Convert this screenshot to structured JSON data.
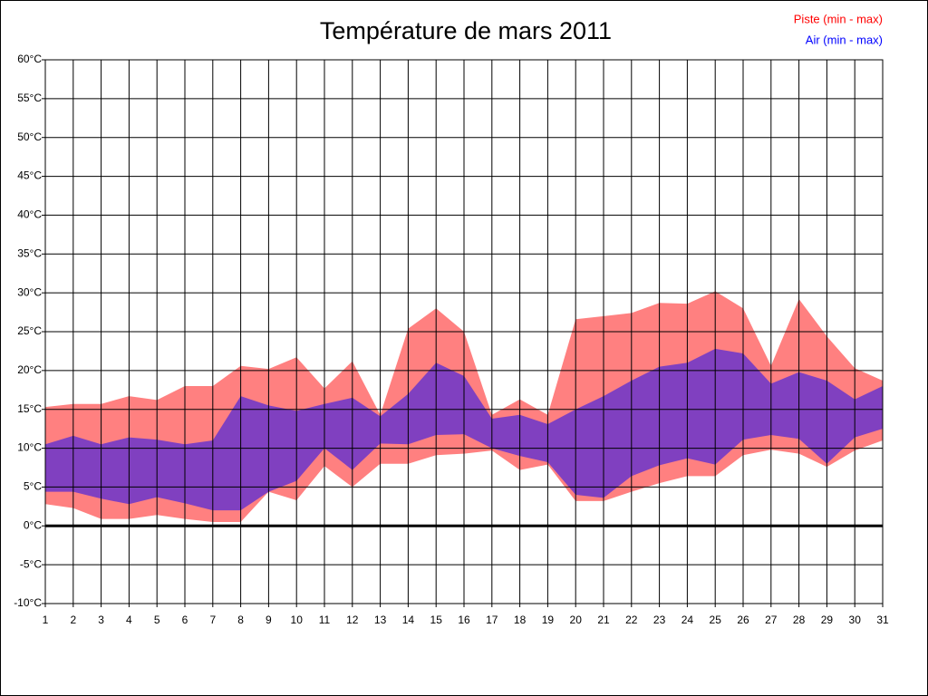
{
  "chart_data": {
    "type": "range-area",
    "title": "Température de mars 2011",
    "x": [
      1,
      2,
      3,
      4,
      5,
      6,
      7,
      8,
      9,
      10,
      11,
      12,
      13,
      14,
      15,
      16,
      17,
      18,
      19,
      20,
      21,
      22,
      23,
      24,
      25,
      26,
      27,
      28,
      29,
      30,
      31
    ],
    "xlim": [
      1,
      31
    ],
    "xticks": [
      1,
      2,
      3,
      4,
      5,
      6,
      7,
      8,
      9,
      10,
      11,
      12,
      13,
      14,
      15,
      16,
      17,
      18,
      19,
      20,
      21,
      22,
      23,
      24,
      25,
      26,
      27,
      28,
      29,
      30,
      31
    ],
    "ylim": [
      -10,
      60
    ],
    "yticks": [
      {
        "value": -10,
        "label": "-10°C"
      },
      {
        "value": -5,
        "label": "-5°C"
      },
      {
        "value": 0,
        "label": "0°C"
      },
      {
        "value": 5,
        "label": "5°C"
      },
      {
        "value": 10,
        "label": "10°C"
      },
      {
        "value": 15,
        "label": "15°C"
      },
      {
        "value": 20,
        "label": "20°C"
      },
      {
        "value": 25,
        "label": "25°C"
      },
      {
        "value": 30,
        "label": "30°C"
      },
      {
        "value": 35,
        "label": "35°C"
      },
      {
        "value": 40,
        "label": "40°C"
      },
      {
        "value": 45,
        "label": "45°C"
      },
      {
        "value": 50,
        "label": "50°C"
      },
      {
        "value": 55,
        "label": "55°C"
      },
      {
        "value": 60,
        "label": "60°C"
      }
    ],
    "grid": true,
    "zero_line": true,
    "legend": "top-right",
    "series": [
      {
        "name": "Piste (min - max)",
        "color": "#ff8080",
        "label_color": "#ff0000",
        "low": [
          2.8,
          2.3,
          0.9,
          0.9,
          1.4,
          0.9,
          0.5,
          0.5,
          4.4,
          3.3,
          7.7,
          5,
          8,
          8,
          9.1,
          9.3,
          9.7,
          7.2,
          7.9,
          3.2,
          3.2,
          4.4,
          5.5,
          6.4,
          6.4,
          9.1,
          9.8,
          9.3,
          7.6,
          9.7,
          11
        ],
        "high": [
          15.3,
          15.7,
          15.7,
          16.7,
          16.2,
          18,
          18,
          20.6,
          20.2,
          21.7,
          17.7,
          21.2,
          14.3,
          25.4,
          28,
          25,
          14.3,
          16.3,
          14.3,
          26.6,
          27,
          27.4,
          28.7,
          28.6,
          30.2,
          28,
          20.6,
          29.2,
          24.4,
          20.3,
          18.7
        ]
      },
      {
        "name": "Air (min - max)",
        "color": "#8040c0",
        "label_color": "#0000ff",
        "low": [
          4.4,
          4.4,
          3.5,
          2.8,
          3.7,
          2.9,
          2,
          2,
          4.4,
          5.8,
          10,
          7.2,
          10.6,
          10.5,
          11.7,
          11.8,
          10,
          9,
          8.2,
          4,
          3.6,
          6.4,
          7.8,
          8.7,
          7.9,
          11.1,
          11.7,
          11.2,
          8,
          11.4,
          12.5
        ],
        "high": [
          10.5,
          11.6,
          10.5,
          11.4,
          11.1,
          10.5,
          11,
          16.7,
          15.5,
          14.8,
          15.7,
          16.5,
          14.1,
          17,
          21,
          19.3,
          13.8,
          14.3,
          13.1,
          15,
          16.7,
          18.7,
          20.5,
          21,
          22.8,
          22.2,
          18.3,
          19.8,
          18.7,
          16.3,
          18
        ]
      }
    ]
  }
}
